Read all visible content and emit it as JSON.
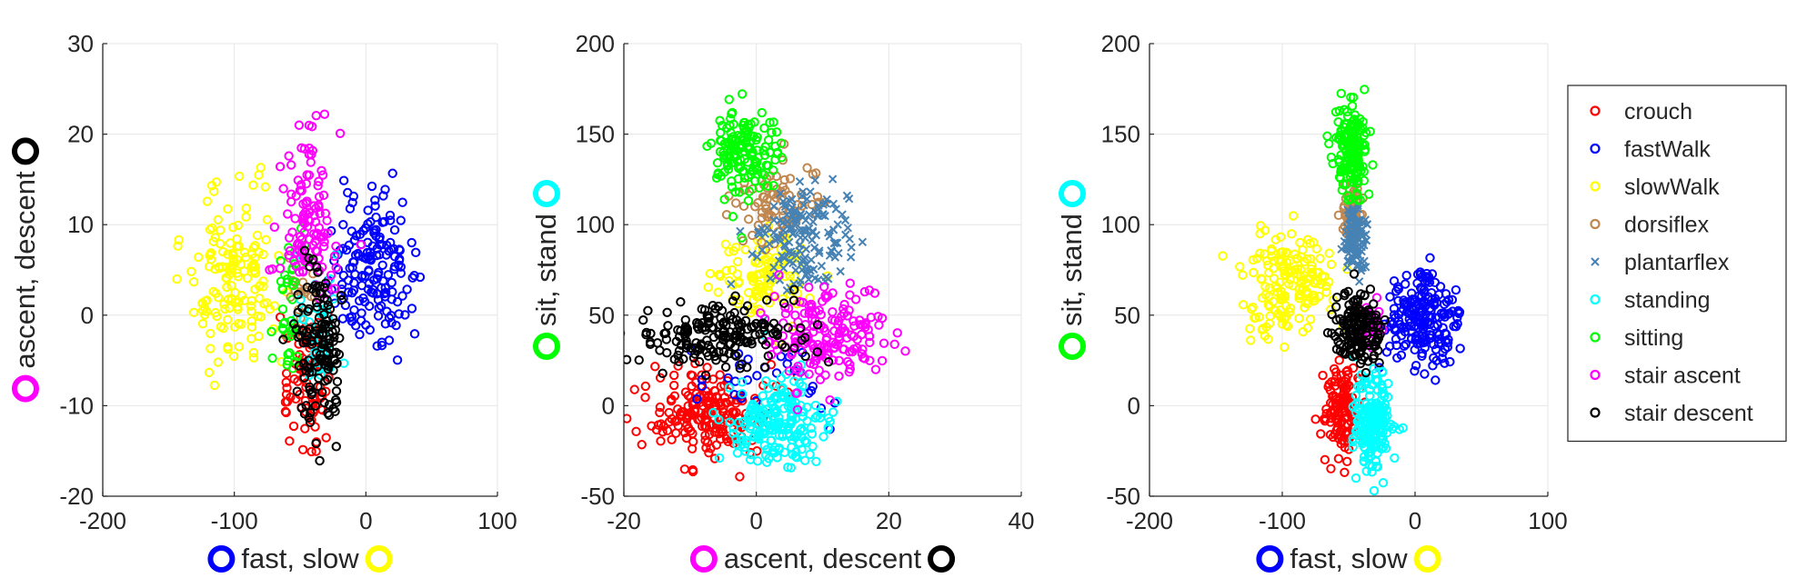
{
  "chart_data": [
    {
      "type": "scatter",
      "xlabel": "fast, slow",
      "ylabel": "ascent, descent",
      "xlim": [
        -200,
        100
      ],
      "ylim": [
        -20,
        30
      ],
      "xticks": [
        -200,
        -100,
        0,
        100
      ],
      "yticks": [
        -20,
        -10,
        0,
        10,
        20,
        30
      ],
      "xlabel_markers": [
        "#0000ff",
        "#ffff00"
      ],
      "ylabel_markers": [
        "#ff00ff",
        "#000000"
      ],
      "grid": true,
      "clusters": [
        {
          "series": "crouch",
          "cx": -45,
          "cy": -7,
          "sx": 9,
          "sy": 3.5,
          "n": 90
        },
        {
          "series": "fastWalk",
          "cx": 5,
          "cy": 5,
          "sx": 16,
          "sy": 3.8,
          "n": 170
        },
        {
          "series": "slowWalk",
          "cx": -100,
          "cy": 4,
          "sx": 17,
          "sy": 4.5,
          "n": 150
        },
        {
          "series": "dorsiflex",
          "cx": -50,
          "cy": 2,
          "sx": 5,
          "sy": 2.5,
          "n": 20
        },
        {
          "series": "standing",
          "cx": -35,
          "cy": -1,
          "sx": 10,
          "sy": 3.2,
          "n": 40
        },
        {
          "series": "sitting",
          "cx": -58,
          "cy": 0,
          "sx": 6,
          "sy": 4,
          "n": 40
        },
        {
          "series": "stair ascent",
          "cx": -45,
          "cy": 11,
          "sx": 11,
          "sy": 4.5,
          "n": 120
        },
        {
          "series": "stair descent",
          "cx": -35,
          "cy": -4,
          "sx": 9,
          "sy": 5,
          "n": 140
        }
      ]
    },
    {
      "type": "scatter",
      "xlabel": "ascent, descent",
      "ylabel": "sit, stand",
      "xlim": [
        -20,
        40
      ],
      "ylim": [
        -50,
        200
      ],
      "xticks": [
        -20,
        0,
        20,
        40
      ],
      "yticks": [
        -50,
        0,
        50,
        100,
        150,
        200
      ],
      "xlabel_markers": [
        "#ff00ff",
        "#000000"
      ],
      "ylabel_markers": [
        "#00ff00",
        "#00ffff"
      ],
      "grid": true,
      "clusters": [
        {
          "series": "crouch",
          "cx": -7,
          "cy": -5,
          "sx": 4.5,
          "sy": 13,
          "n": 200
        },
        {
          "series": "fastWalk",
          "cx": 2,
          "cy": 15,
          "sx": 5,
          "sy": 10,
          "n": 30
        },
        {
          "series": "slowWalk",
          "cx": 2,
          "cy": 72,
          "sx": 4,
          "sy": 12,
          "n": 110
        },
        {
          "series": "dorsiflex",
          "cx": 3,
          "cy": 110,
          "sx": 3.5,
          "sy": 12,
          "n": 80
        },
        {
          "series": "plantarflex",
          "cx": 7,
          "cy": 90,
          "sx": 3.5,
          "sy": 15,
          "n": 160
        },
        {
          "series": "standing",
          "cx": 3,
          "cy": -10,
          "sx": 3.5,
          "sy": 12,
          "n": 200
        },
        {
          "series": "sitting",
          "cx": -2,
          "cy": 140,
          "sx": 2.5,
          "sy": 12,
          "n": 150
        },
        {
          "series": "stair ascent",
          "cx": 11,
          "cy": 38,
          "sx": 4.5,
          "sy": 12,
          "n": 170
        },
        {
          "series": "stair descent",
          "cx": -5,
          "cy": 40,
          "sx": 6,
          "sy": 10,
          "n": 180
        }
      ]
    },
    {
      "type": "scatter",
      "xlabel": "fast, slow",
      "ylabel": "sit, stand",
      "xlim": [
        -200,
        100
      ],
      "ylim": [
        -50,
        200
      ],
      "xticks": [
        -200,
        -100,
        0,
        100
      ],
      "yticks": [
        -50,
        0,
        50,
        100,
        150,
        200
      ],
      "xlabel_markers": [
        "#0000ff",
        "#ffff00"
      ],
      "ylabel_markers": [
        "#00ff00",
        "#00ffff"
      ],
      "grid": true,
      "clusters": [
        {
          "series": "crouch",
          "cx": -55,
          "cy": -3,
          "sx": 7,
          "sy": 12,
          "n": 130
        },
        {
          "series": "fastWalk",
          "cx": 5,
          "cy": 48,
          "sx": 14,
          "sy": 14,
          "n": 200
        },
        {
          "series": "slowWalk",
          "cx": -95,
          "cy": 68,
          "sx": 17,
          "sy": 14,
          "n": 170
        },
        {
          "series": "dorsiflex",
          "cx": -48,
          "cy": 110,
          "sx": 4,
          "sy": 8,
          "n": 60
        },
        {
          "series": "plantarflex",
          "cx": -45,
          "cy": 92,
          "sx": 4,
          "sy": 10,
          "n": 110
        },
        {
          "series": "standing",
          "cx": -32,
          "cy": -10,
          "sx": 7,
          "sy": 12,
          "n": 200
        },
        {
          "series": "sitting",
          "cx": -48,
          "cy": 140,
          "sx": 6,
          "sy": 13,
          "n": 160
        },
        {
          "series": "stair ascent",
          "cx": -35,
          "cy": 45,
          "sx": 5,
          "sy": 6,
          "n": 30
        },
        {
          "series": "stair descent",
          "cx": -43,
          "cy": 42,
          "sx": 9,
          "sy": 11,
          "n": 150
        }
      ]
    }
  ],
  "legend": {
    "placement": "right",
    "entries": [
      {
        "label": "crouch",
        "color": "#ff0000",
        "marker": "circle"
      },
      {
        "label": "fastWalk",
        "color": "#0000ff",
        "marker": "circle"
      },
      {
        "label": "slowWalk",
        "color": "#ffff00",
        "marker": "circle"
      },
      {
        "label": "dorsiflex",
        "color": "#c08850",
        "marker": "circle"
      },
      {
        "label": "plantarflex",
        "color": "#4682b4",
        "marker": "cross"
      },
      {
        "label": "standing",
        "color": "#00ffff",
        "marker": "circle"
      },
      {
        "label": "sitting",
        "color": "#00ff00",
        "marker": "circle"
      },
      {
        "label": "stair ascent",
        "color": "#ff00ff",
        "marker": "circle"
      },
      {
        "label": "stair descent",
        "color": "#000000",
        "marker": "circle"
      }
    ]
  }
}
